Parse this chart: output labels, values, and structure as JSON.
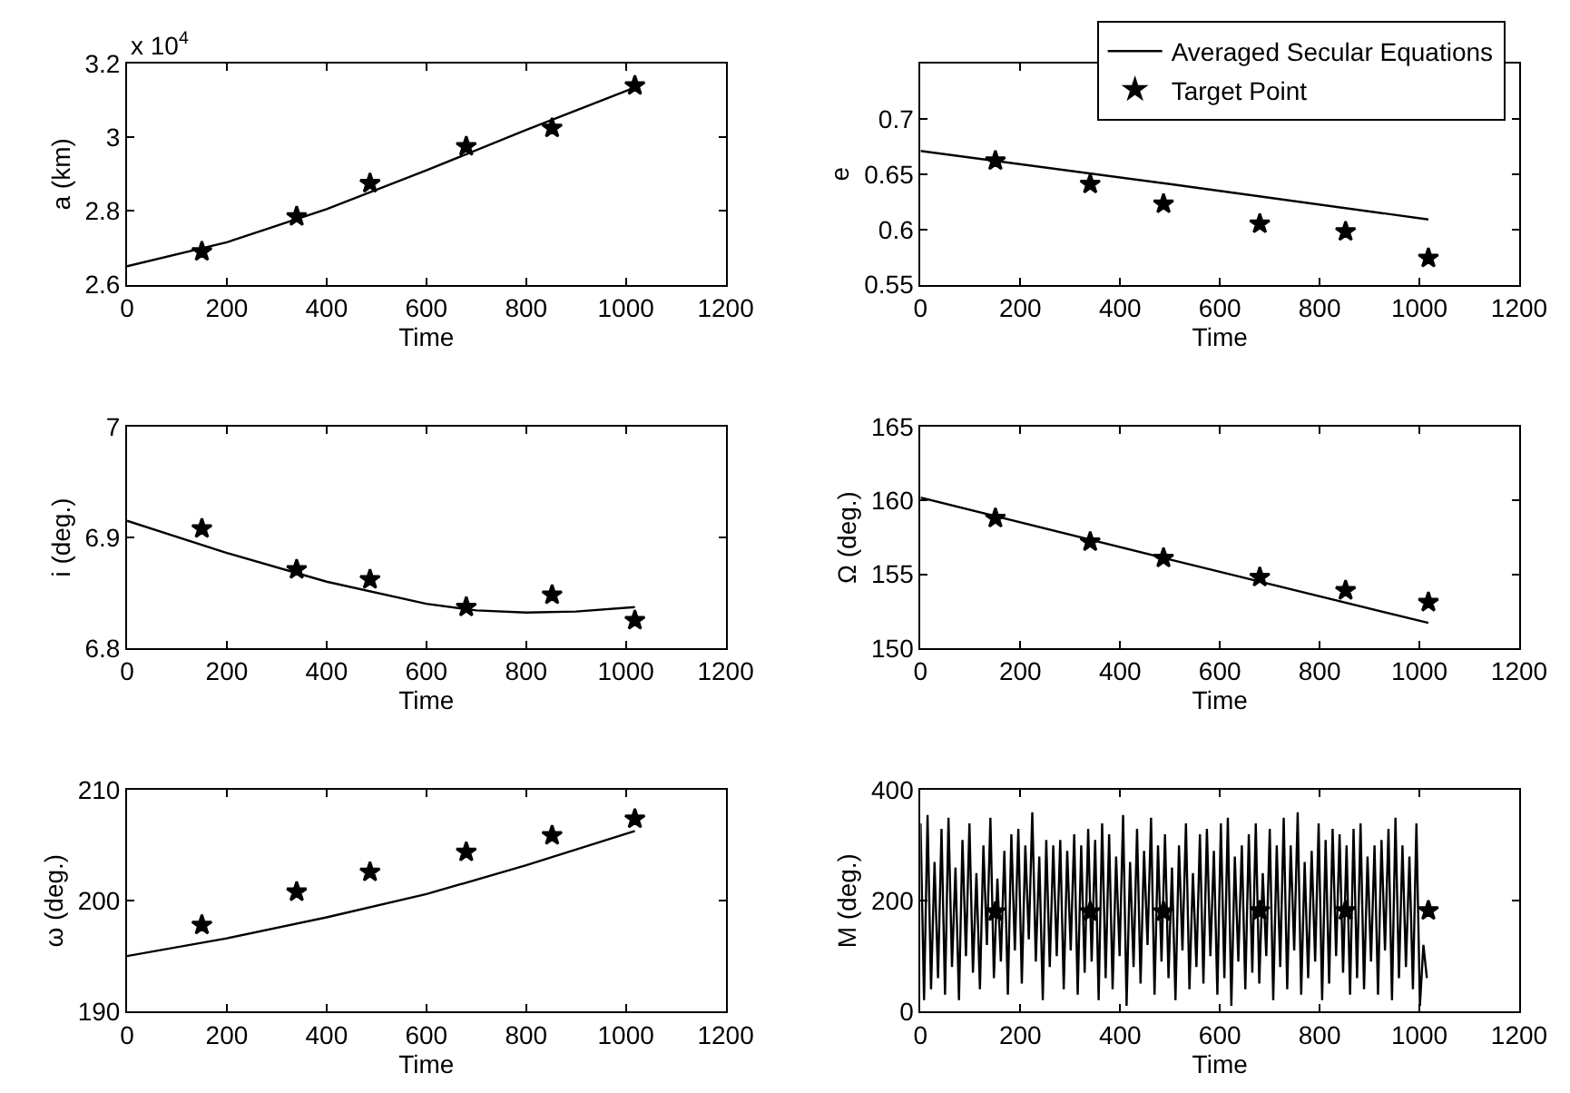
{
  "chart_data": [
    {
      "type": "line",
      "xlabel": "Time",
      "ylabel": "a (km)",
      "xlim": [
        0,
        1200
      ],
      "xticks": [
        0,
        200,
        400,
        600,
        800,
        1000,
        1200
      ],
      "ylim": [
        2.6,
        3.2
      ],
      "yticks": [
        2.6,
        2.8,
        3,
        3.2
      ],
      "annotations": [
        "x 10$^{4}$"
      ],
      "series": [
        {
          "color": "#000000",
          "marker": "none",
          "x": [
            0,
            200,
            400,
            600,
            800,
            1018
          ],
          "values": [
            2.65,
            2.715,
            2.805,
            2.91,
            3.02,
            3.135
          ]
        },
        {
          "type": "scatter",
          "color": "#000000",
          "marker": "star",
          "x": [
            150,
            340,
            487,
            680,
            852,
            1018
          ],
          "values": [
            2.69,
            2.785,
            2.875,
            2.975,
            3.025,
            3.14
          ]
        }
      ]
    },
    {
      "type": "line",
      "xlabel": "Time",
      "ylabel": "e",
      "xlim": [
        0,
        1200
      ],
      "xticks": [
        0,
        200,
        400,
        600,
        800,
        1000,
        1200
      ],
      "ylim": [
        0.55,
        0.75
      ],
      "yticks": [
        0.55,
        0.6,
        0.65,
        0.7
      ],
      "legend": "top right",
      "series": [
        {
          "name": "Averaged Secular Equations",
          "color": "#000000",
          "marker": "none",
          "x": [
            0,
            500,
            1018
          ],
          "values": [
            0.671,
            0.641,
            0.609
          ]
        },
        {
          "type": "scatter",
          "name": "Target Point",
          "color": "#000000",
          "marker": "star",
          "x": [
            150,
            340,
            487,
            680,
            852,
            1018
          ],
          "values": [
            0.662,
            0.641,
            0.623,
            0.605,
            0.598,
            0.574
          ]
        }
      ]
    },
    {
      "type": "line",
      "xlabel": "Time",
      "ylabel": "i (deg.)",
      "xlim": [
        0,
        1200
      ],
      "xticks": [
        0,
        200,
        400,
        600,
        800,
        1000,
        1200
      ],
      "ylim": [
        6.8,
        7
      ],
      "yticks": [
        6.8,
        6.9,
        7
      ],
      "series": [
        {
          "color": "#000000",
          "marker": "none",
          "x": [
            0,
            200,
            400,
            600,
            700,
            800,
            900,
            1018
          ],
          "values": [
            6.915,
            6.886,
            6.86,
            6.84,
            6.834,
            6.832,
            6.833,
            6.837
          ]
        },
        {
          "type": "scatter",
          "color": "#000000",
          "marker": "star",
          "x": [
            150,
            340,
            487,
            680,
            852,
            1018
          ],
          "values": [
            6.908,
            6.871,
            6.862,
            6.837,
            6.848,
            6.825
          ]
        }
      ]
    },
    {
      "type": "line",
      "xlabel": "Time",
      "ylabel": "Ω (deg.)",
      "xlim": [
        0,
        1200
      ],
      "xticks": [
        0,
        200,
        400,
        600,
        800,
        1000,
        1200
      ],
      "ylim": [
        150,
        165
      ],
      "yticks": [
        150,
        155,
        160,
        165
      ],
      "series": [
        {
          "color": "#000000",
          "marker": "none",
          "x": [
            0,
            500,
            1018
          ],
          "values": [
            160.2,
            156.0,
            151.7
          ]
        },
        {
          "type": "scatter",
          "color": "#000000",
          "marker": "star",
          "x": [
            150,
            340,
            487,
            680,
            852,
            1018
          ],
          "values": [
            158.8,
            157.2,
            156.1,
            154.8,
            153.9,
            153.1
          ]
        }
      ]
    },
    {
      "type": "line",
      "xlabel": "Time",
      "ylabel": "ω (deg.)",
      "xlim": [
        0,
        1200
      ],
      "xticks": [
        0,
        200,
        400,
        600,
        800,
        1000,
        1200
      ],
      "ylim": [
        190,
        210
      ],
      "yticks": [
        190,
        200,
        210
      ],
      "series": [
        {
          "color": "#000000",
          "marker": "none",
          "x": [
            0,
            200,
            400,
            600,
            800,
            1018
          ],
          "values": [
            195,
            196.6,
            198.5,
            200.6,
            203.2,
            206.3
          ]
        },
        {
          "type": "scatter",
          "color": "#000000",
          "marker": "star",
          "x": [
            150,
            340,
            487,
            680,
            852,
            1018
          ],
          "values": [
            197.8,
            200.8,
            202.6,
            204.4,
            205.9,
            207.4
          ]
        }
      ]
    },
    {
      "type": "line",
      "xlabel": "Time",
      "ylabel": "M (deg.)",
      "xlim": [
        0,
        1200
      ],
      "xticks": [
        0,
        200,
        400,
        600,
        800,
        1000,
        1200
      ],
      "ylim": [
        0,
        400
      ],
      "yticks": [
        0,
        200,
        400
      ],
      "series": [
        {
          "color": "#000000",
          "marker": "none",
          "x": [
            0,
            7,
            14,
            21,
            28,
            35,
            42,
            49,
            56,
            63,
            70,
            77,
            84,
            91,
            98,
            105,
            112,
            119,
            126,
            133,
            140,
            147,
            154,
            161,
            168,
            175,
            182,
            189,
            196,
            203,
            210,
            217,
            224,
            231,
            238,
            245,
            252,
            259,
            266,
            273,
            280,
            287,
            294,
            301,
            308,
            315,
            322,
            329,
            336,
            343,
            350,
            357,
            364,
            371,
            378,
            385,
            392,
            399,
            406,
            413,
            420,
            427,
            434,
            441,
            448,
            455,
            462,
            469,
            476,
            483,
            490,
            497,
            504,
            511,
            518,
            525,
            532,
            539,
            546,
            553,
            560,
            567,
            574,
            581,
            588,
            595,
            602,
            609,
            616,
            623,
            630,
            637,
            644,
            651,
            658,
            665,
            672,
            679,
            686,
            693,
            700,
            707,
            714,
            721,
            728,
            735,
            742,
            749,
            756,
            763,
            770,
            777,
            784,
            791,
            798,
            805,
            812,
            819,
            826,
            833,
            840,
            847,
            854,
            861,
            868,
            875,
            882,
            889,
            896,
            903,
            910,
            917,
            924,
            931,
            938,
            945,
            952,
            959,
            966,
            973,
            980,
            987,
            994,
            1001,
            1008,
            1015
          ],
          "values": [
            340,
            20,
            355,
            40,
            270,
            60,
            330,
            30,
            350,
            80,
            260,
            20,
            310,
            100,
            340,
            70,
            250,
            40,
            300,
            120,
            350,
            60,
            240,
            90,
            290,
            30,
            320,
            110,
            330,
            50,
            300,
            130,
            360,
            90,
            280,
            20,
            310,
            80,
            300,
            100,
            310,
            40,
            290,
            110,
            320,
            30,
            300,
            70,
            330,
            90,
            310,
            20,
            340,
            60,
            320,
            40,
            280,
            100,
            355,
            10,
            270,
            80,
            330,
            50,
            290,
            120,
            350,
            30,
            300,
            90,
            320,
            60,
            260,
            20,
            300,
            110,
            340,
            40,
            250,
            80,
            320,
            50,
            330,
            100,
            290,
            30,
            340,
            60,
            350,
            10,
            280,
            90,
            300,
            40,
            320,
            70,
            340,
            50,
            250,
            100,
            330,
            20,
            300,
            80,
            350,
            40,
            300,
            110,
            360,
            30,
            270,
            60,
            290,
            90,
            340,
            20,
            310,
            50,
            330,
            100,
            320,
            70,
            300,
            30,
            330,
            60,
            340,
            40,
            280,
            90,
            300,
            30,
            310,
            110,
            330,
            20,
            350,
            60,
            300,
            80,
            280,
            40,
            340,
            10,
            120,
            60
          ]
        },
        {
          "type": "scatter",
          "color": "#000000",
          "marker": "star",
          "x": [
            150,
            340,
            487,
            680,
            852,
            1018
          ],
          "values": [
            180,
            180,
            180,
            182,
            182,
            182
          ]
        }
      ]
    }
  ]
}
